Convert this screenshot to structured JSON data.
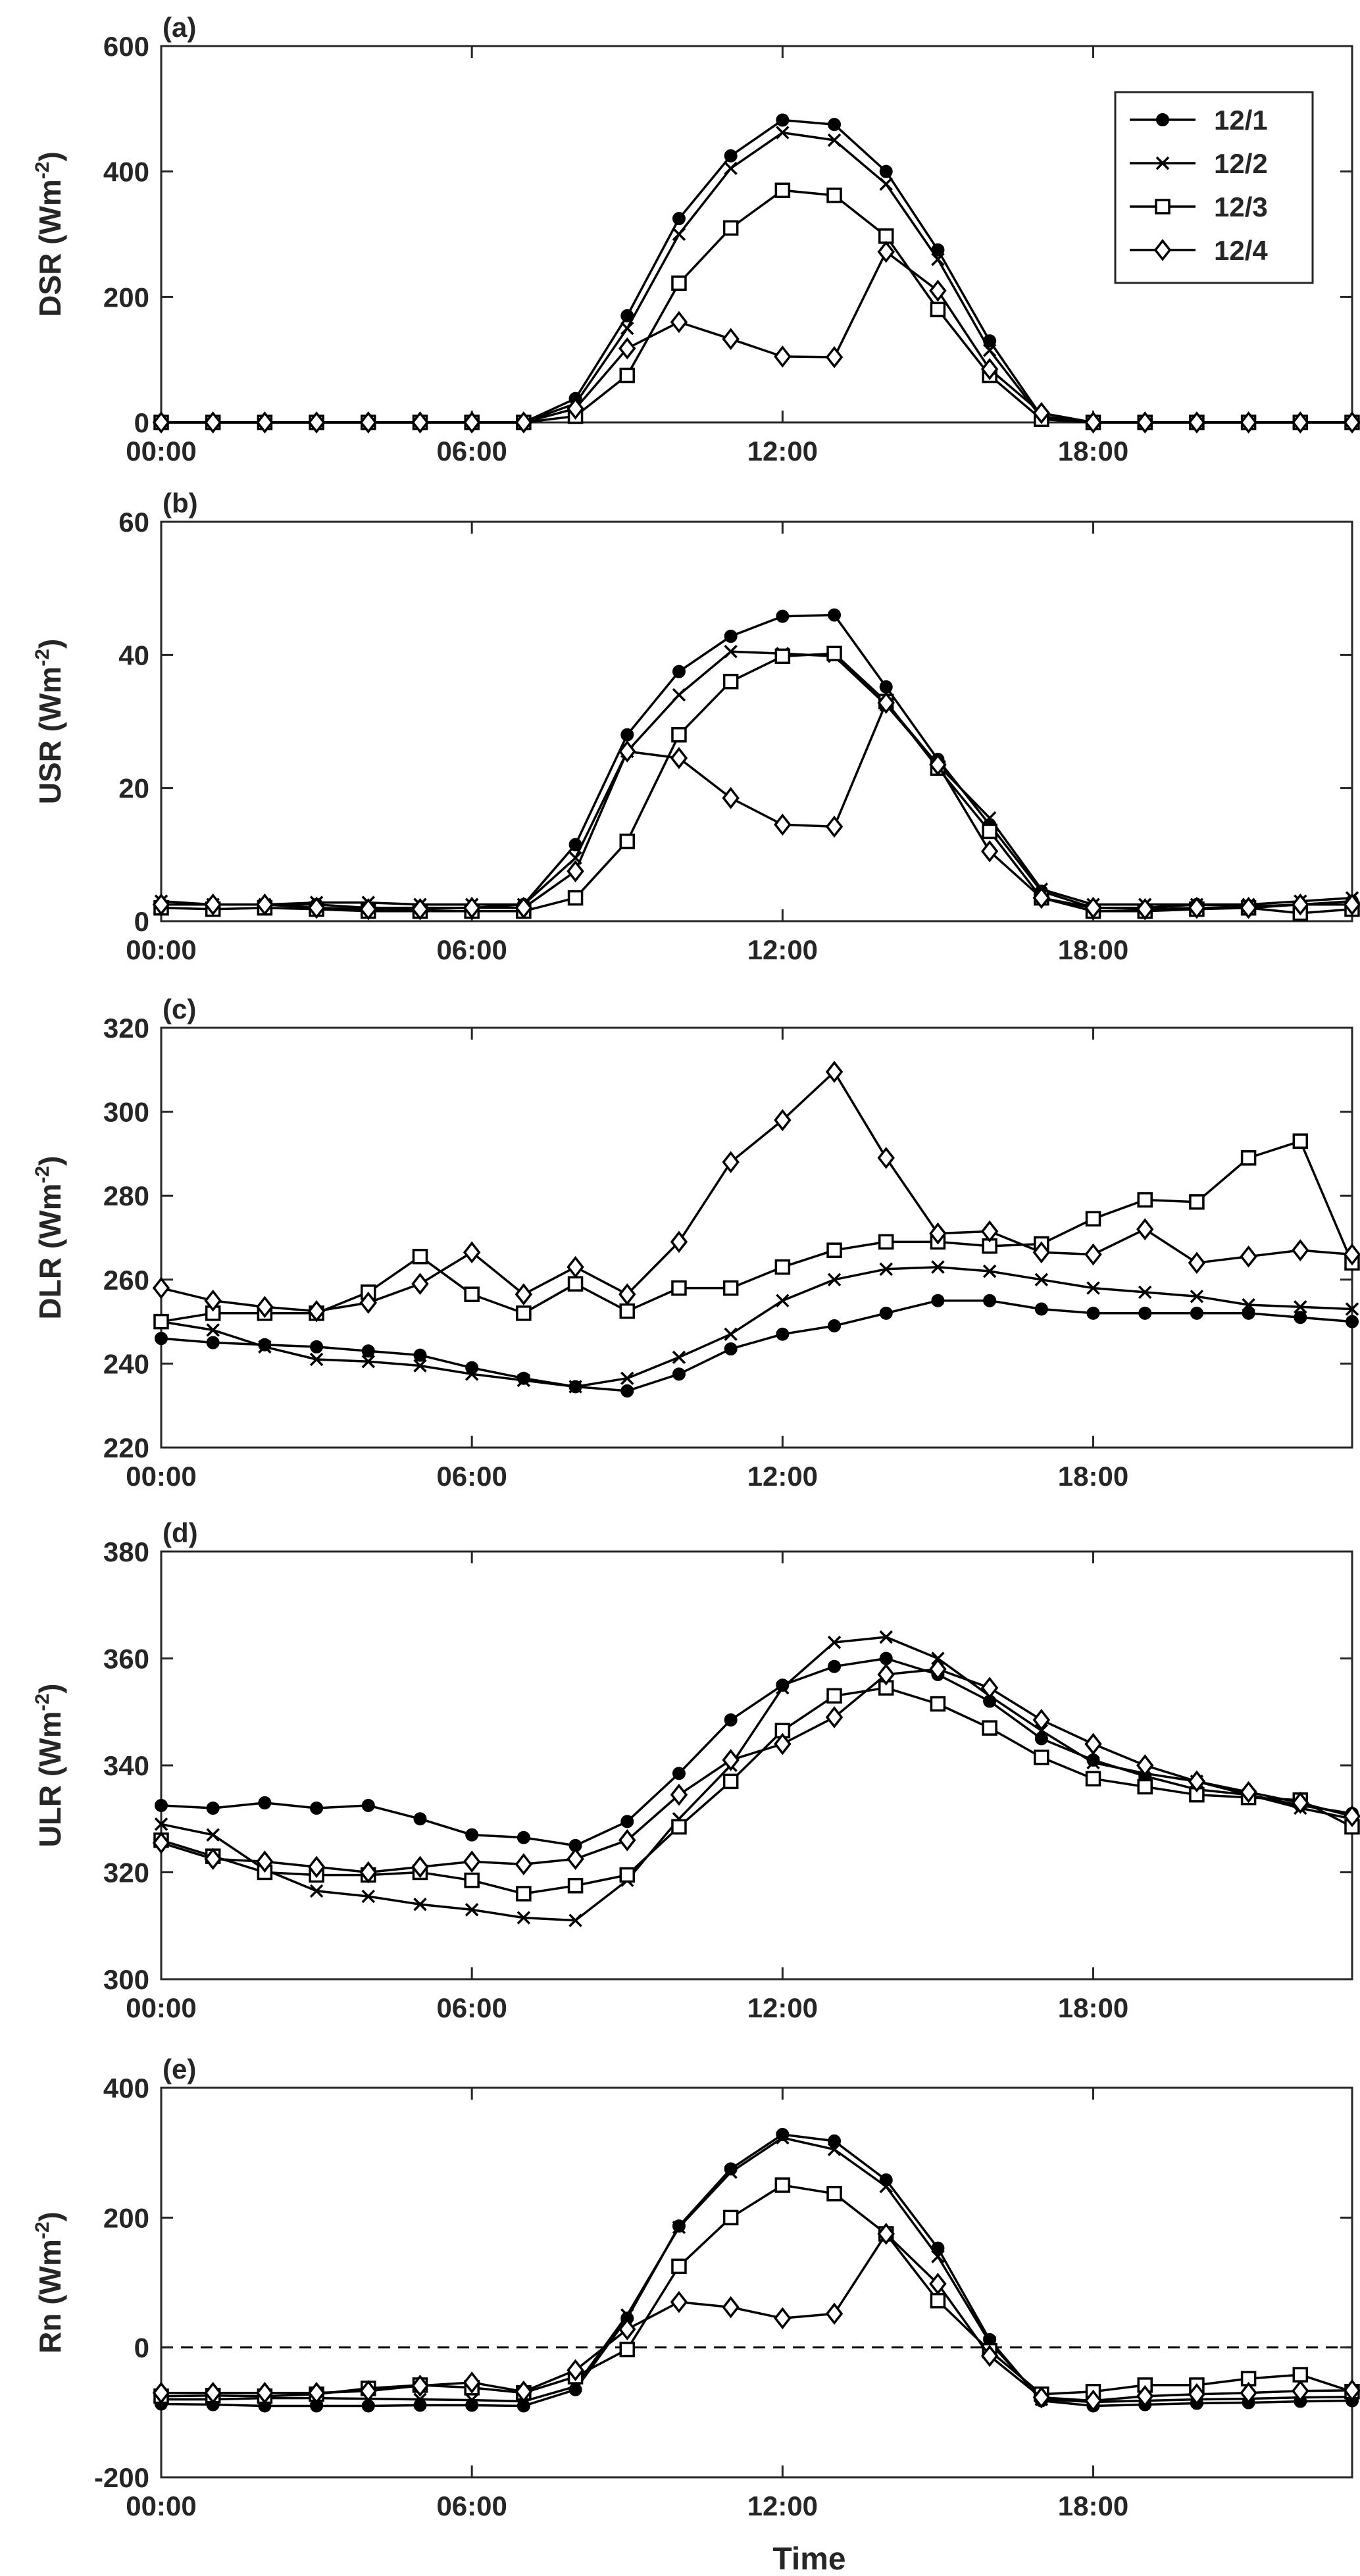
{
  "figure": {
    "xlabel": "Time",
    "legend": {
      "position": "top-right",
      "entries": [
        {
          "name": "12/1",
          "marker": "filled-circle"
        },
        {
          "name": "12/2",
          "marker": "cross"
        },
        {
          "name": "12/3",
          "marker": "square"
        },
        {
          "name": "12/4",
          "marker": "diamond"
        }
      ]
    }
  },
  "chart_data": [
    {
      "type": "line",
      "panel_label": "(a)",
      "ylabel": "DSR (Wm-2)",
      "ylabel_main": "DSR (Wm",
      "ylabel_sup": "-2",
      "ylabel_close": ")",
      "ylim": [
        0,
        600
      ],
      "yticks": [
        0,
        200,
        400,
        600
      ],
      "x_unit": "hours",
      "xlim": [
        0,
        23
      ],
      "xticks": [
        0,
        6,
        12,
        18
      ],
      "xticklabels": [
        "00:00",
        "06:00",
        "12:00",
        "18:00"
      ],
      "grid": false,
      "legend_position": "top-right",
      "x": [
        0,
        1,
        2,
        3,
        4,
        5,
        6,
        7,
        8,
        9,
        10,
        11,
        12,
        13,
        14,
        15,
        16,
        17,
        18,
        19,
        20,
        21,
        22,
        23
      ],
      "series": [
        {
          "name": "12/1",
          "values": [
            0,
            0,
            0,
            0,
            0,
            0,
            0,
            0,
            38,
            170,
            325,
            425,
            482,
            475,
            400,
            275,
            130,
            10,
            0,
            0,
            0,
            0,
            0,
            0
          ]
        },
        {
          "name": "12/2",
          "values": [
            0,
            0,
            0,
            0,
            0,
            0,
            0,
            0,
            30,
            150,
            300,
            405,
            462,
            450,
            380,
            260,
            115,
            8,
            0,
            0,
            0,
            0,
            0,
            0
          ]
        },
        {
          "name": "12/3",
          "values": [
            0,
            0,
            0,
            0,
            0,
            0,
            0,
            0,
            10,
            75,
            222,
            310,
            370,
            362,
            297,
            180,
            75,
            5,
            0,
            0,
            0,
            0,
            0,
            0
          ]
        },
        {
          "name": "12/4",
          "values": [
            0,
            0,
            0,
            0,
            0,
            0,
            0,
            0,
            22,
            118,
            160,
            133,
            105,
            104,
            272,
            210,
            85,
            15,
            0,
            0,
            0,
            0,
            0,
            0
          ]
        }
      ]
    },
    {
      "type": "line",
      "panel_label": "(b)",
      "ylabel": "USR (Wm-2)",
      "ylabel_main": "USR (Wm",
      "ylabel_sup": "-2",
      "ylabel_close": ")",
      "ylim": [
        0,
        60
      ],
      "yticks": [
        0,
        20,
        40,
        60
      ],
      "x_unit": "hours",
      "xlim": [
        0,
        23
      ],
      "xticks": [
        0,
        6,
        12,
        18
      ],
      "xticklabels": [
        "00:00",
        "06:00",
        "12:00",
        "18:00"
      ],
      "grid": false,
      "x": [
        0,
        1,
        2,
        3,
        4,
        5,
        6,
        7,
        8,
        9,
        10,
        11,
        12,
        13,
        14,
        15,
        16,
        17,
        18,
        19,
        20,
        21,
        22,
        23
      ],
      "series": [
        {
          "name": "12/1",
          "values": [
            2.5,
            2.5,
            2.5,
            2.5,
            2.0,
            2.0,
            2.0,
            2.5,
            11.5,
            28,
            37.5,
            42.8,
            45.8,
            46.0,
            35.2,
            24.3,
            14.5,
            4.5,
            2.0,
            2.0,
            2.5,
            2.2,
            2.5,
            3.0
          ]
        },
        {
          "name": "12/2",
          "values": [
            3.0,
            2.5,
            2.5,
            2.8,
            2.8,
            2.5,
            2.5,
            2.5,
            9.5,
            25.5,
            34,
            40.5,
            40.2,
            39.8,
            32.5,
            23.5,
            15.5,
            4.8,
            2.5,
            2.5,
            2.5,
            2.5,
            3.0,
            3.5
          ]
        },
        {
          "name": "12/3",
          "values": [
            2.0,
            1.8,
            2.0,
            1.8,
            1.5,
            1.5,
            1.5,
            1.5,
            3.5,
            12,
            28,
            36,
            39.8,
            40.2,
            33,
            23,
            13.5,
            3.5,
            1.5,
            1.5,
            1.8,
            2.0,
            1.2,
            1.8
          ]
        },
        {
          "name": "12/4",
          "values": [
            2.5,
            2.5,
            2.5,
            2.0,
            1.8,
            1.8,
            2.0,
            2.0,
            7.5,
            25.5,
            24.5,
            18.5,
            14.5,
            14.2,
            32.8,
            23.5,
            10.5,
            3.5,
            2.0,
            1.8,
            2.0,
            2.0,
            2.5,
            2.5
          ]
        }
      ]
    },
    {
      "type": "line",
      "panel_label": "(c)",
      "ylabel": "DLR (Wm-2)",
      "ylabel_main": "DLR (Wm",
      "ylabel_sup": "-2",
      "ylabel_close": ")",
      "ylim": [
        220,
        320
      ],
      "yticks": [
        220,
        240,
        260,
        280,
        300,
        320
      ],
      "x_unit": "hours",
      "xlim": [
        0,
        23
      ],
      "xticks": [
        0,
        6,
        12,
        18
      ],
      "xticklabels": [
        "00:00",
        "06:00",
        "12:00",
        "18:00"
      ],
      "grid": false,
      "x": [
        0,
        1,
        2,
        3,
        4,
        5,
        6,
        7,
        8,
        9,
        10,
        11,
        12,
        13,
        14,
        15,
        16,
        17,
        18,
        19,
        20,
        21,
        22,
        23
      ],
      "series": [
        {
          "name": "12/1",
          "values": [
            246,
            245,
            244.5,
            244,
            243,
            242,
            239,
            236.5,
            234.5,
            233.5,
            237.5,
            243.5,
            247,
            249,
            252,
            255,
            255,
            253,
            252,
            252,
            252,
            252,
            251,
            250
          ]
        },
        {
          "name": "12/2",
          "values": [
            250,
            248,
            244,
            241,
            240.5,
            239.5,
            237.5,
            236,
            234.5,
            236.5,
            241.5,
            247,
            255,
            260,
            262.5,
            263,
            262,
            260,
            258,
            257,
            256,
            254,
            253.5,
            253
          ]
        },
        {
          "name": "12/3",
          "values": [
            250,
            252,
            252,
            252,
            257,
            265.5,
            256.5,
            252,
            259,
            252.5,
            258,
            258,
            263,
            267,
            269,
            269,
            268,
            268.5,
            274.5,
            279,
            278.5,
            289,
            293,
            264
          ]
        },
        {
          "name": "12/4",
          "values": [
            258,
            255,
            253.5,
            252.5,
            254.5,
            259,
            266.5,
            256.5,
            263,
            256.5,
            269,
            288,
            298,
            309.5,
            289,
            271,
            271.5,
            266.5,
            266,
            272,
            264,
            265.5,
            267,
            266
          ]
        }
      ]
    },
    {
      "type": "line",
      "panel_label": "(d)",
      "ylabel": "ULR (Wm-2)",
      "ylabel_main": "ULR (Wm",
      "ylabel_sup": "-2",
      "ylabel_close": ")",
      "ylim": [
        300,
        380
      ],
      "yticks": [
        300,
        320,
        340,
        360,
        380
      ],
      "x_unit": "hours",
      "xlim": [
        0,
        23
      ],
      "xticks": [
        0,
        6,
        12,
        18
      ],
      "xticklabels": [
        "00:00",
        "06:00",
        "12:00",
        "18:00"
      ],
      "grid": false,
      "x": [
        0,
        1,
        2,
        3,
        4,
        5,
        6,
        7,
        8,
        9,
        10,
        11,
        12,
        13,
        14,
        15,
        16,
        17,
        18,
        19,
        20,
        21,
        22,
        23
      ],
      "series": [
        {
          "name": "12/1",
          "values": [
            332.5,
            332,
            333,
            332,
            332.5,
            330,
            327,
            326.5,
            325,
            329.5,
            338.5,
            348.5,
            355,
            358.5,
            360,
            357,
            352,
            345,
            341,
            338,
            335.5,
            334.5,
            332.5,
            331
          ]
        },
        {
          "name": "12/2",
          "values": [
            329,
            327,
            320.5,
            316.5,
            315.5,
            314,
            313,
            311.5,
            311,
            318.5,
            330,
            340,
            354.5,
            363,
            364,
            360,
            353,
            346.5,
            340.5,
            338.5,
            337,
            334.5,
            332,
            330
          ]
        },
        {
          "name": "12/3",
          "values": [
            326,
            323,
            320,
            319.5,
            319.5,
            320,
            318.5,
            316,
            317.5,
            319.5,
            328.5,
            337,
            346.5,
            353,
            354.5,
            351.5,
            347,
            341.5,
            337.5,
            336,
            334.5,
            334,
            333.5,
            328.5
          ]
        },
        {
          "name": "12/4",
          "values": [
            325.5,
            322.5,
            322,
            321,
            320,
            321,
            322,
            321.5,
            322.5,
            326,
            334.5,
            341,
            344,
            349,
            357,
            358,
            354.5,
            348.5,
            344,
            340,
            337,
            335,
            333,
            330.5
          ]
        }
      ]
    },
    {
      "type": "line",
      "panel_label": "(e)",
      "ylabel": "Rn (Wm-2)",
      "ylabel_main": "Rn (Wm",
      "ylabel_sup": "-2",
      "ylabel_close": ")",
      "ylim": [
        -200,
        400
      ],
      "yticks": [
        -200,
        0,
        200,
        400
      ],
      "reference_line": {
        "y": 0,
        "style": "dashed"
      },
      "x_unit": "hours",
      "xlim": [
        0,
        23
      ],
      "xticks": [
        0,
        6,
        12,
        18
      ],
      "xticklabels": [
        "00:00",
        "06:00",
        "12:00",
        "18:00"
      ],
      "grid": false,
      "x": [
        0,
        1,
        2,
        3,
        4,
        5,
        6,
        7,
        8,
        9,
        10,
        11,
        12,
        13,
        14,
        15,
        16,
        17,
        18,
        19,
        20,
        21,
        22,
        23
      ],
      "series": [
        {
          "name": "12/1",
          "values": [
            -87,
            -88,
            -90,
            -90,
            -90,
            -89,
            -89,
            -90,
            -65,
            45,
            187,
            275,
            328,
            318,
            258,
            153,
            12,
            -82,
            -90,
            -88,
            -86,
            -85,
            -83,
            -82
          ]
        },
        {
          "name": "12/2",
          "values": [
            -80,
            -80,
            -78,
            -78,
            -79,
            -80,
            -81,
            -83,
            -60,
            50,
            185,
            270,
            323,
            305,
            248,
            140,
            8,
            -80,
            -84,
            -82,
            -80,
            -79,
            -77,
            -76
          ]
        },
        {
          "name": "12/3",
          "values": [
            -75,
            -74,
            -75,
            -72,
            -63,
            -58,
            -62,
            -70,
            -45,
            -3,
            125,
            200,
            250,
            237,
            175,
            72,
            -5,
            -72,
            -68,
            -58,
            -58,
            -48,
            -42,
            -68
          ]
        },
        {
          "name": "12/4",
          "values": [
            -70,
            -70,
            -70,
            -70,
            -67,
            -59,
            -54,
            -68,
            -35,
            28,
            70,
            62,
            45,
            52,
            175,
            98,
            -13,
            -77,
            -82,
            -75,
            -72,
            -70,
            -67,
            -66
          ]
        }
      ]
    }
  ]
}
